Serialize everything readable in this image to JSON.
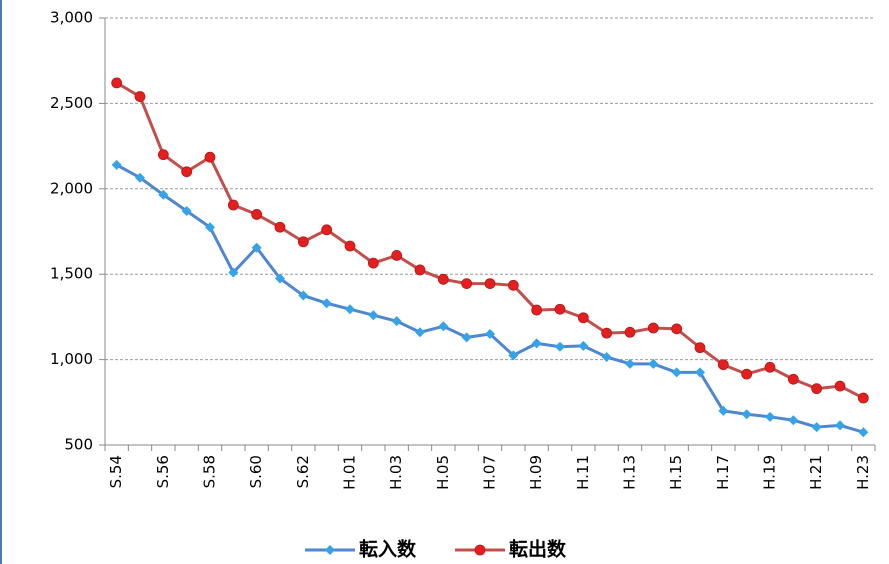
{
  "chart_data": {
    "type": "line",
    "categories": [
      "S.54",
      null,
      "S.56",
      null,
      "S.58",
      null,
      "S.60",
      null,
      "S.62",
      null,
      "H.01",
      null,
      "H.03",
      null,
      "H.05",
      null,
      "H.07",
      null,
      "H.09",
      null,
      "H.11",
      null,
      "H.13",
      null,
      "H.15",
      null,
      "H.17",
      null,
      "H.19",
      null,
      "H.21",
      null,
      "H.23"
    ],
    "series": [
      {
        "name": "転入数",
        "color": "#4f86d0",
        "marker": "diamond",
        "marker_color": "#35a3e8",
        "values": [
          2140,
          2065,
          1965,
          1870,
          1775,
          1510,
          1655,
          1475,
          1375,
          1330,
          1295,
          1260,
          1225,
          1160,
          1195,
          1130,
          1150,
          1025,
          1095,
          1075,
          1080,
          1015,
          975,
          975,
          925,
          925,
          700,
          680,
          665,
          645,
          605,
          615,
          575
        ]
      },
      {
        "name": "転出数",
        "color": "#c0504d",
        "marker": "circle",
        "marker_color": "#e3201f",
        "values": [
          2620,
          2540,
          2200,
          2100,
          2185,
          1905,
          1850,
          1775,
          1690,
          1760,
          1665,
          1565,
          1610,
          1525,
          1470,
          1445,
          1445,
          1435,
          1290,
          1295,
          1245,
          1155,
          1160,
          1185,
          1180,
          1070,
          970,
          915,
          955,
          885,
          830,
          845,
          775
        ]
      }
    ],
    "ylim": [
      500,
      3000
    ],
    "yticks": [
      500,
      {
        "value": 1000,
        "label": "1,000"
      },
      {
        "value": 1500,
        "label": "1,500"
      },
      {
        "value": 2000,
        "label": "2,000"
      },
      {
        "value": 2500,
        "label": "2,500"
      },
      {
        "value": 3000,
        "label": "3,000"
      }
    ],
    "grid": true,
    "legend": "bottom"
  }
}
